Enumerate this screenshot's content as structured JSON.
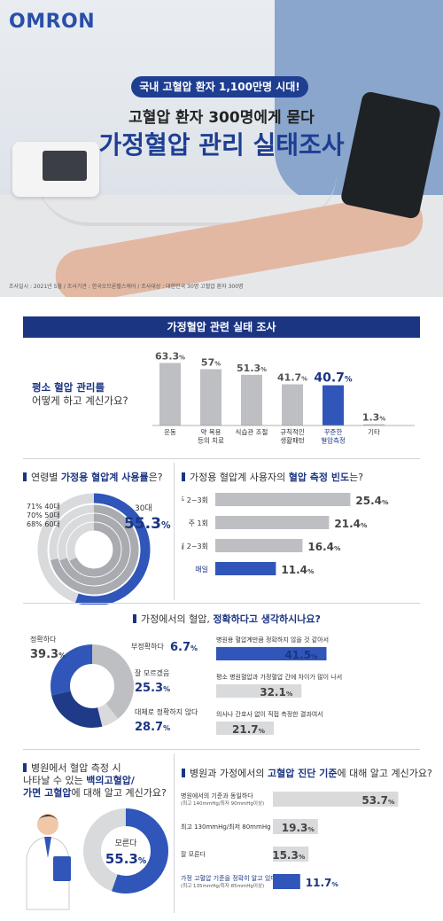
{
  "brand": {
    "logo": "OMRON"
  },
  "hero": {
    "badge": "국내 고혈압 환자 1,100만명 시대!",
    "subtitle": "고혈압 환자 300명에게 묻다",
    "title": "가정혈압 관리 실태조사",
    "note": "조사일시 : 2021년 5월 / 조사기관 : 한국오므론헬스케어 / 조사대상 : 대한민국 30명 고혈압 환자 300명"
  },
  "section_title": "가정혈압 관련 실태 조사",
  "colors": {
    "navy": "#1b3582",
    "blue": "#2f56b8",
    "gray": "#bdbfc3",
    "lightgray": "#d9dadc"
  },
  "q1": {
    "question_line1": "평소 혈압 관리를",
    "question_line2": "어떻게 하고 계신가요?"
  },
  "q2": {
    "question_prefix": "연령별 ",
    "question_bold": "가정용 혈압계 사용률",
    "question_suffix": "은?"
  },
  "q3": {
    "question_prefix": "가정용 혈압계 사용자의 ",
    "question_bold": "혈압 측정 빈도",
    "question_suffix": "는?"
  },
  "q4": {
    "question_prefix": "가정에서의 혈압, ",
    "question_bold": "정확하다고 생각하시나요?",
    "question_suffix": ""
  },
  "q5": {
    "line1": "병원에서 혈압 측정 시",
    "line2_prefix": "나타날 수 있는 ",
    "line2_bold": "백의고혈압/",
    "line3_bold": "가면 고혈압",
    "line3_suffix": "에 대해 알고 계신가요?"
  },
  "q6": {
    "question_prefix": "병원과 가정에서의 ",
    "question_bold": "고혈압 진단 기준",
    "question_suffix": "에 대해 알고 계신가요?"
  },
  "chart_data": [
    {
      "type": "bar",
      "categories": [
        "운동",
        "약 복용 등의 치료",
        "식습관 조절",
        "규칙적인 생활패턴",
        "꾸준한 혈압측정",
        "기타"
      ],
      "values": [
        63.3,
        57,
        51.3,
        41.7,
        40.7,
        1.3
      ],
      "labels": [
        "63.3%",
        "57%",
        "51.3%",
        "41.7%",
        "40.7%",
        "1.3%"
      ],
      "highlight_index": 4,
      "ylim": [
        0,
        70
      ]
    },
    {
      "type": "bar",
      "orientation": "radial",
      "categories": [
        "30대",
        "40대",
        "50대",
        "60대"
      ],
      "values": [
        55.3,
        71,
        70,
        68
      ],
      "labels": [
        "55.3%",
        "71%",
        "70%",
        "68%"
      ],
      "highlight_index": 0
    },
    {
      "type": "bar",
      "orientation": "horizontal",
      "categories": [
        "주 2~3회",
        "주 1회",
        "월 2~3회",
        "매일"
      ],
      "values": [
        25.4,
        21.4,
        16.4,
        11.4
      ],
      "labels": [
        "25.4%",
        "21.4%",
        "16.4%",
        "11.4%"
      ],
      "highlight_index": 3,
      "xlim": [
        0,
        30
      ]
    },
    {
      "type": "pie",
      "donut": true,
      "categories": [
        "정확하다",
        "부정확하다",
        "잘 모르겠음",
        "대체로 정확하지 않다"
      ],
      "values": [
        39.3,
        6.7,
        25.3,
        28.7
      ],
      "labels": [
        "39.3%",
        "6.7%",
        "25.3%",
        "28.7%"
      ]
    },
    {
      "type": "bar",
      "orientation": "horizontal",
      "categories": [
        "병원용 혈압계만큼 정확하지 않을 것 같아서",
        "평소 병원혈압과 가정혈압 간에 차이가 많이 나서",
        "의사나 간호사 없이 직접 측정한 결과여서"
      ],
      "values": [
        41.5,
        32.1,
        21.7
      ],
      "labels": [
        "41.5%",
        "32.1%",
        "21.7%"
      ],
      "highlight_index": 0,
      "xlim": [
        0,
        50
      ]
    },
    {
      "type": "pie",
      "donut": true,
      "categories": [
        "모른다"
      ],
      "values": [
        55.3
      ],
      "labels": [
        "55.3%"
      ]
    },
    {
      "type": "bar",
      "orientation": "horizontal",
      "categories": [
        "병원에서의 기준과 동일하다",
        "최고 130mmHg/최저 80mmHg",
        "잘 모른다",
        "가정 고혈압 기준을 정확히 알고 있다"
      ],
      "sublabels": [
        "(최고 140mmHg/최저 90mmHg이상)",
        "",
        "",
        "(최고 135mmHg/최저 85mmHg이상)"
      ],
      "values": [
        53.7,
        19.3,
        15.3,
        11.7
      ],
      "labels": [
        "53.7%",
        "19.3%",
        "15.3%",
        "11.7%"
      ],
      "highlight_index": 3,
      "xlim": [
        0,
        60
      ]
    }
  ]
}
